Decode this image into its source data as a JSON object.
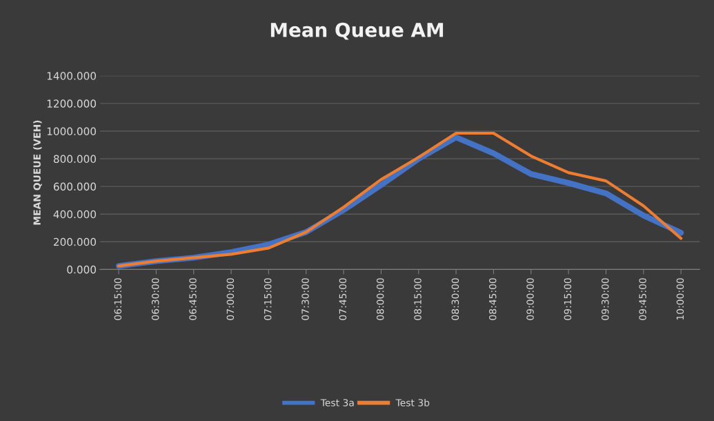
{
  "chart_data": {
    "type": "line",
    "title": "Mean Queue AM",
    "ylabel": "MEAN QUEUE (VEH)",
    "categories": [
      "06:15:00",
      "06:30:00",
      "06:45:00",
      "07:00:00",
      "07:15:00",
      "07:30:00",
      "07:45:00",
      "08:00:00",
      "08:15:00",
      "08:30:00",
      "08:45:00",
      "09:00:00",
      "09:15:00",
      "09:30:00",
      "09:45:00",
      "10:00:00"
    ],
    "series": [
      {
        "name": "Test 3a",
        "color": "#4472c4",
        "values": [
          25,
          60,
          85,
          125,
          180,
          270,
          430,
          610,
          800,
          955,
          840,
          690,
          625,
          550,
          390,
          265
        ]
      },
      {
        "name": "Test 3b",
        "color": "#ed7d31",
        "values": [
          25,
          60,
          85,
          110,
          155,
          270,
          450,
          650,
          810,
          985,
          985,
          820,
          700,
          640,
          460,
          225
        ]
      }
    ],
    "ylim": [
      0,
      1400
    ],
    "yticks": [
      {
        "value": 0,
        "label": "0.000"
      },
      {
        "value": 200,
        "label": "200.000"
      },
      {
        "value": 400,
        "label": "400.000"
      },
      {
        "value": 600,
        "label": "600.000"
      },
      {
        "value": 800,
        "label": "800.000"
      },
      {
        "value": 1000,
        "label": "1000.000"
      },
      {
        "value": 1200,
        "label": "1200.000"
      },
      {
        "value": 1400,
        "label": "1400.000"
      }
    ],
    "grid": "y",
    "legend": "bottom",
    "marker": "none",
    "line_style": "solid"
  }
}
